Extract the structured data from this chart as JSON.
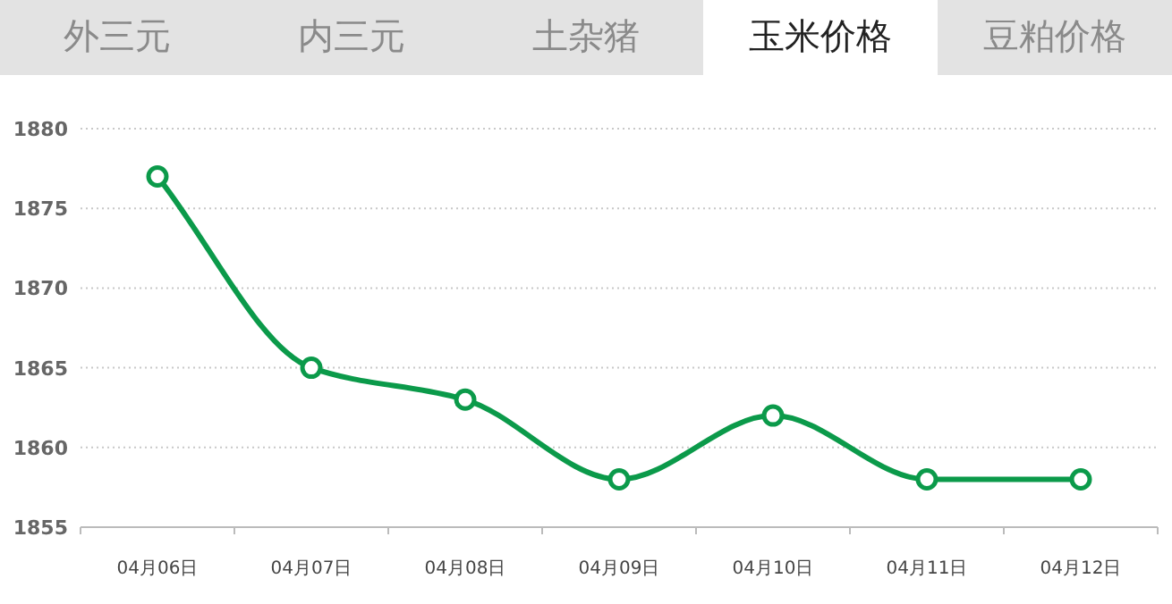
{
  "chart_data": {
    "type": "line",
    "title": "玉米价格",
    "annotations": [
      "外三元",
      "内三元",
      "土杂猪",
      "豆粕价格"
    ],
    "categories": [
      "04月06日",
      "04月07日",
      "04月08日",
      "04月09日",
      "04月10日",
      "04月11日",
      "04月12日"
    ],
    "series": [
      {
        "color": "#0b9a4a",
        "values": [
          1877,
          1865,
          1863,
          1858,
          1862,
          1858,
          1858
        ]
      }
    ],
    "ylim": [
      1855,
      1880
    ],
    "yticks": [
      1855,
      1860,
      1865,
      1870,
      1875,
      1880
    ],
    "grid": "y",
    "marker": "circle",
    "line_style": "solid"
  }
}
